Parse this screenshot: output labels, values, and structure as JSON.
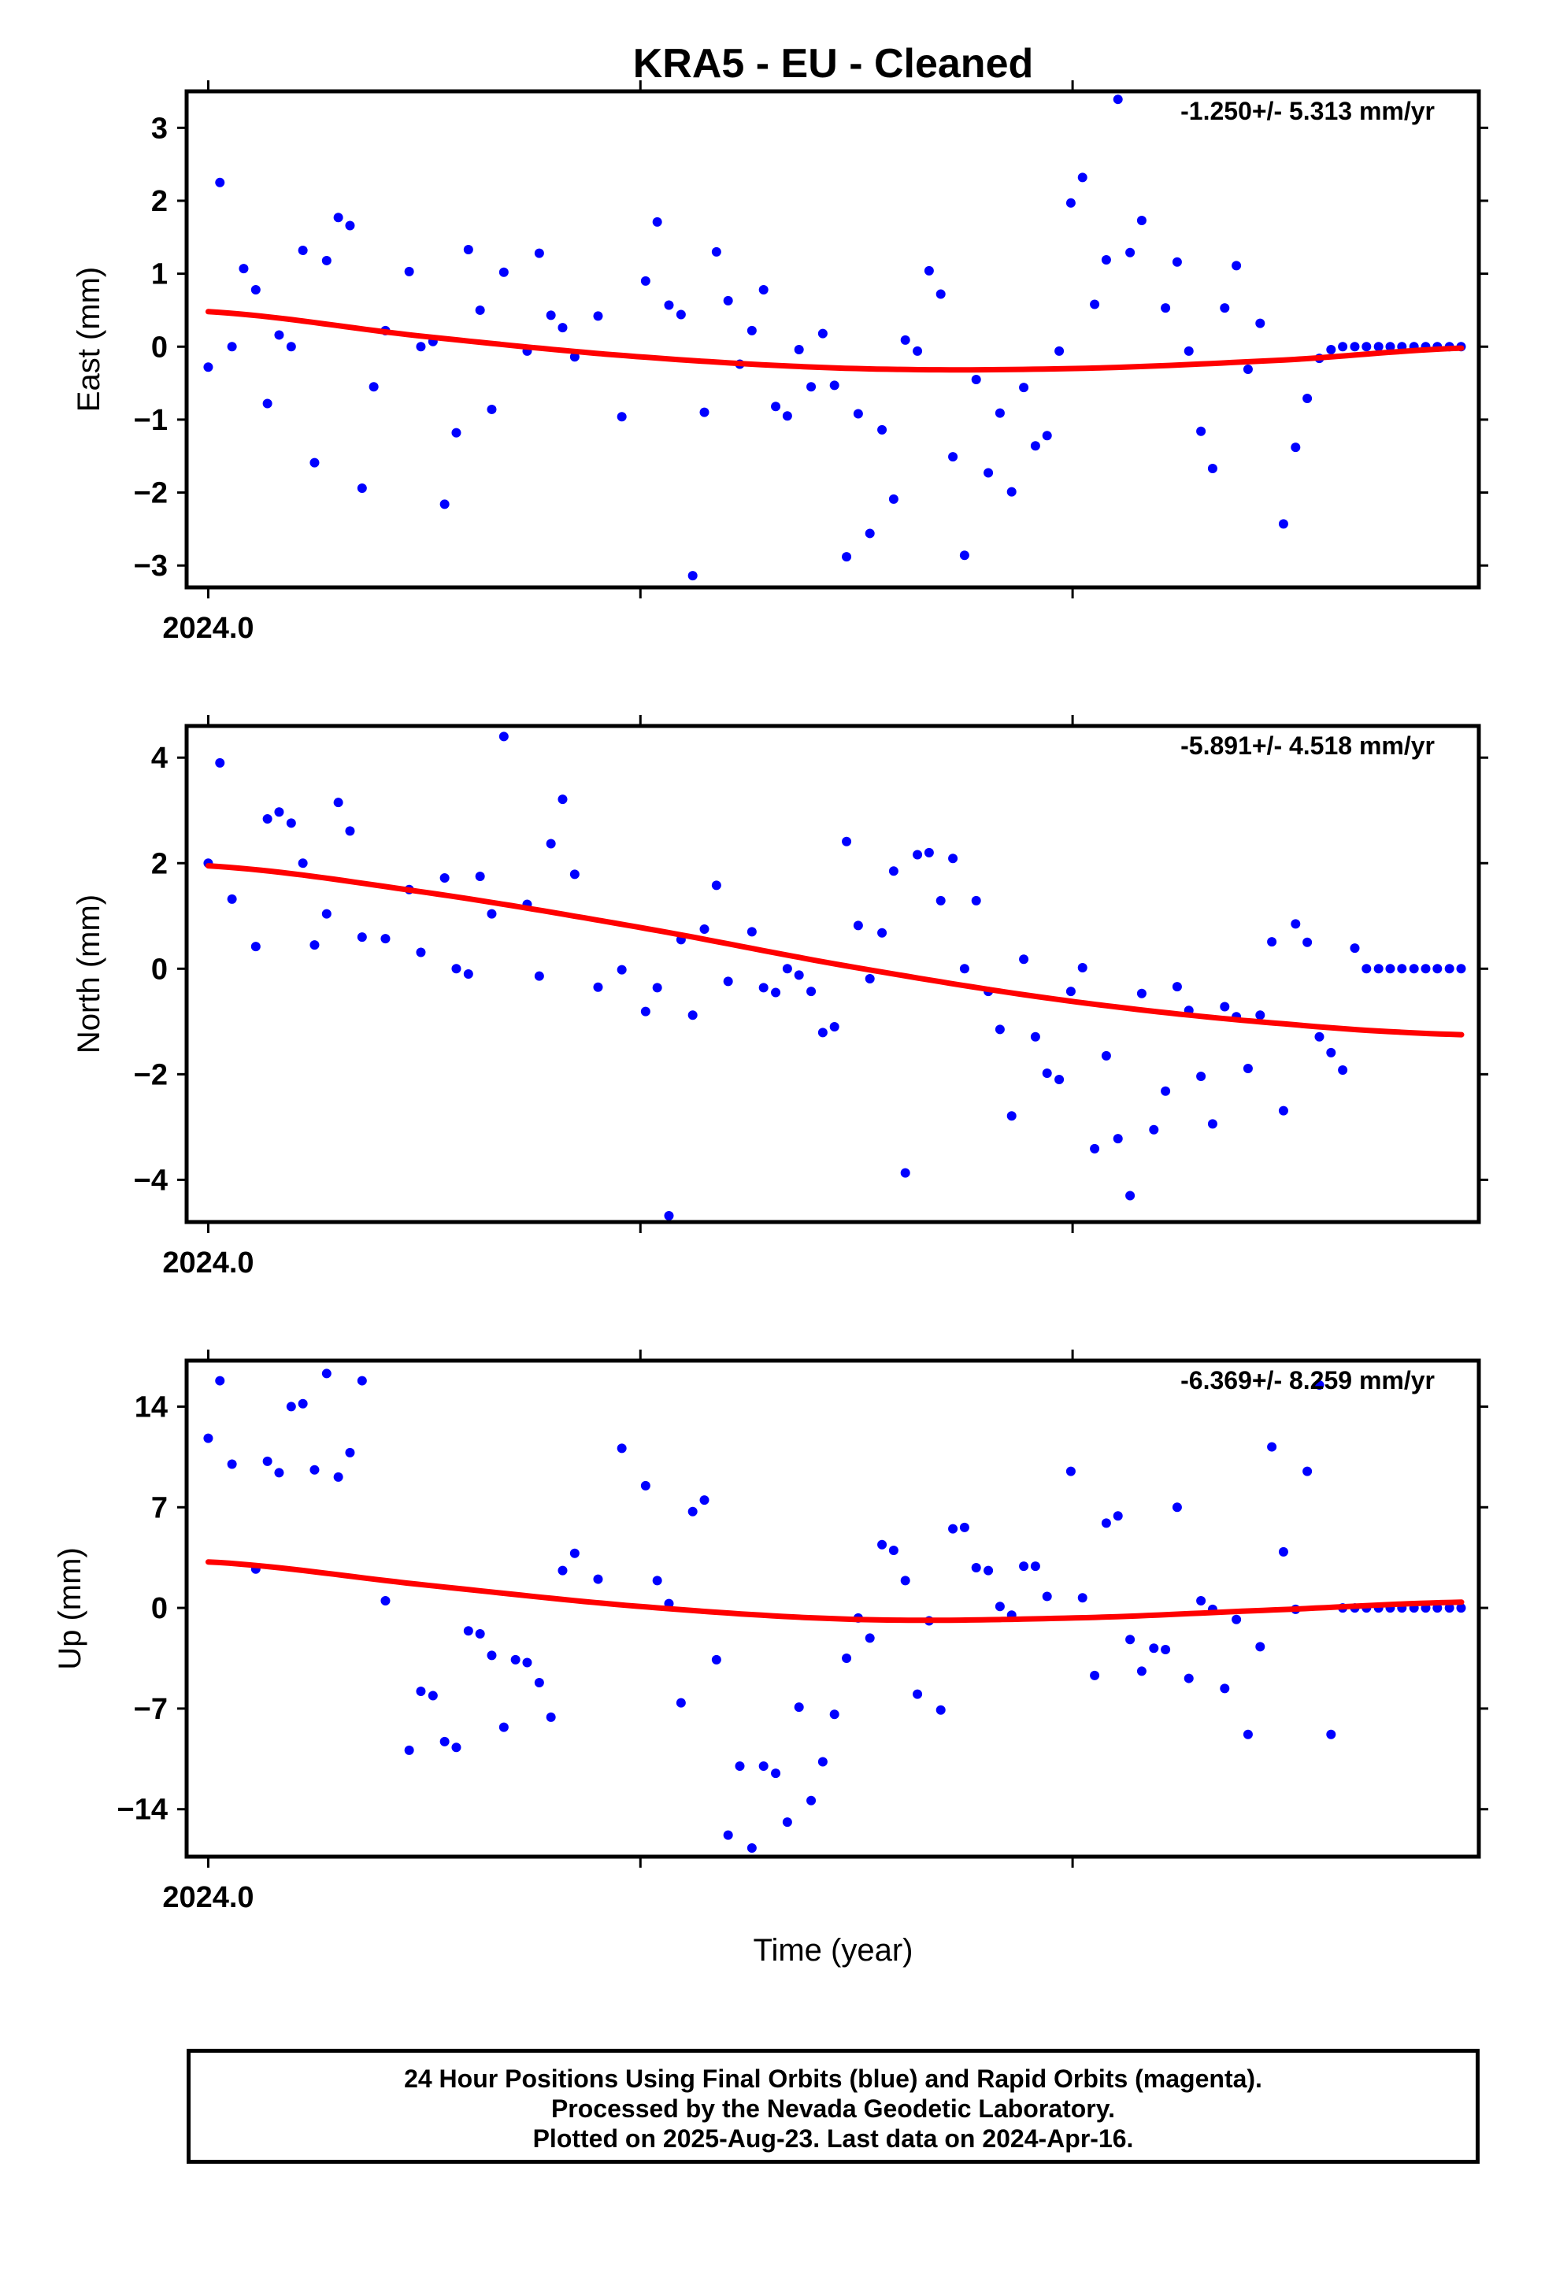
{
  "title": "KRA5  - EU - Cleaned",
  "xlabel": "Time (year)",
  "footer": {
    "line1": "24 Hour Positions Using Final Orbits (blue) and Rapid Orbits (magenta).",
    "line2": "Processed by the Nevada Geodetic Laboratory.",
    "line3": "Plotted on 2025-Aug-23. Last data on 2024-Apr-16."
  },
  "colors": {
    "points": "#0000ff",
    "fit": "#ff0000",
    "frame": "#000000"
  },
  "chart_data": [
    {
      "type": "scatter",
      "panel": "east",
      "ylabel": "East (mm)",
      "rate_text": "-1.250+/- 5.313 mm/yr",
      "xlim": [
        2023.995,
        2024.294
      ],
      "ylim": [
        -3.3,
        3.5
      ],
      "yticks": [
        -3,
        -2,
        -1,
        0,
        1,
        2,
        3
      ],
      "xtick_label": "2024.0",
      "x": [
        2024.0,
        2024.0027,
        2024.0055,
        2024.0082,
        2024.011,
        2024.0137,
        2024.0164,
        2024.0192,
        2024.0219,
        2024.0246,
        2024.0274,
        2024.0301,
        2024.0328,
        2024.0356,
        2024.0383,
        2024.041,
        2024.0465,
        2024.0492,
        2024.052,
        2024.0547,
        2024.0574,
        2024.0602,
        2024.0629,
        2024.0656,
        2024.0684,
        2024.0738,
        2024.0766,
        2024.0793,
        2024.082,
        2024.0848,
        2024.0902,
        2024.0957,
        2024.1012,
        2024.1039,
        2024.1066,
        2024.1094,
        2024.1121,
        2024.1148,
        2024.1176,
        2024.1203,
        2024.123,
        2024.1258,
        2024.1285,
        2024.1313,
        2024.134,
        2024.1367,
        2024.1395,
        2024.1422,
        2024.1449,
        2024.1477,
        2024.1504,
        2024.1531,
        2024.1559,
        2024.1586,
        2024.1613,
        2024.1641,
        2024.1668,
        2024.1695,
        2024.1723,
        2024.175,
        2024.1777,
        2024.1805,
        2024.1832,
        2024.1859,
        2024.1887,
        2024.1914,
        2024.1941,
        2024.1969,
        2024.1996,
        2024.2023,
        2024.2051,
        2024.2078,
        2024.2105,
        2024.2133,
        2024.216,
        2024.2215,
        2024.2242,
        2024.2269,
        2024.2297,
        2024.2324,
        2024.2352,
        2024.2379,
        2024.2406,
        2024.2434,
        2024.2488,
        2024.2516,
        2024.2543,
        2024.2571,
        2024.2598,
        2024.2625,
        2024.2653,
        2024.268,
        2024.2708,
        2024.2735,
        2024.2762,
        2024.279,
        2024.2817,
        2024.2844,
        2024.2872,
        2024.2899
      ],
      "y": [
        -0.28,
        2.25,
        0.0,
        1.07,
        0.78,
        -0.78,
        0.16,
        0.0,
        1.32,
        -1.59,
        1.18,
        1.77,
        1.66,
        -1.94,
        -0.55,
        0.22,
        1.03,
        0.0,
        0.07,
        -2.16,
        -1.18,
        1.33,
        0.5,
        -0.86,
        1.02,
        -0.06,
        1.28,
        0.43,
        0.26,
        -0.14,
        0.42,
        -0.96,
        0.9,
        1.71,
        0.57,
        0.44,
        -3.14,
        -0.9,
        1.3,
        0.63,
        -0.24,
        0.22,
        0.78,
        -0.82,
        -0.95,
        -0.04,
        -0.55,
        0.18,
        -0.53,
        -2.88,
        -0.92,
        -2.56,
        -1.14,
        -2.09,
        0.09,
        -0.06,
        1.04,
        0.72,
        -1.51,
        -2.86,
        -0.45,
        -1.73,
        -0.91,
        -1.99,
        -0.56,
        -1.36,
        -1.22,
        -0.06,
        1.97,
        2.32,
        0.58,
        1.19,
        3.39,
        1.29,
        1.73,
        0.53,
        1.16,
        -0.06,
        -1.16,
        -1.67,
        0.53,
        1.11,
        -0.31,
        0.32,
        -2.43,
        -1.38,
        -0.71,
        -0.16,
        -0.04,
        0.0,
        0.0,
        0.0,
        0.0,
        0.0,
        0.0,
        0.0,
        0.0,
        0.0,
        0.0,
        0.0
      ],
      "fit": {
        "x": [
          2024.0,
          2024.05,
          2024.1,
          2024.15,
          2024.2,
          2024.25,
          2024.29
        ],
        "y": [
          0.48,
          0.14,
          -0.14,
          -0.3,
          -0.3,
          -0.18,
          -0.02
        ]
      }
    },
    {
      "type": "scatter",
      "panel": "north",
      "ylabel": "North (mm)",
      "rate_text": "-5.891+/- 4.518 mm/yr",
      "xlim": [
        2023.995,
        2024.294
      ],
      "ylim": [
        -4.8,
        4.6
      ],
      "yticks": [
        -4,
        -2,
        0,
        2,
        4
      ],
      "xtick_label": "2024.0",
      "x": [
        2024.0,
        2024.0027,
        2024.0055,
        2024.011,
        2024.0137,
        2024.0164,
        2024.0192,
        2024.0219,
        2024.0246,
        2024.0274,
        2024.0301,
        2024.0328,
        2024.0356,
        2024.041,
        2024.0465,
        2024.0492,
        2024.0547,
        2024.0574,
        2024.0602,
        2024.0629,
        2024.0656,
        2024.0684,
        2024.0738,
        2024.0766,
        2024.0793,
        2024.082,
        2024.0848,
        2024.0902,
        2024.0957,
        2024.1012,
        2024.1039,
        2024.1066,
        2024.1094,
        2024.1121,
        2024.1148,
        2024.1176,
        2024.1203,
        2024.1258,
        2024.1285,
        2024.1313,
        2024.134,
        2024.1367,
        2024.1395,
        2024.1422,
        2024.1449,
        2024.1477,
        2024.1504,
        2024.1531,
        2024.1559,
        2024.1586,
        2024.1613,
        2024.1641,
        2024.1668,
        2024.1695,
        2024.1723,
        2024.175,
        2024.1777,
        2024.1805,
        2024.1832,
        2024.1859,
        2024.1887,
        2024.1914,
        2024.1941,
        2024.1969,
        2024.1996,
        2024.2023,
        2024.2051,
        2024.2078,
        2024.2105,
        2024.2133,
        2024.216,
        2024.2188,
        2024.2215,
        2024.2242,
        2024.2269,
        2024.2297,
        2024.2324,
        2024.2352,
        2024.2379,
        2024.2406,
        2024.2434,
        2024.2461,
        2024.2488,
        2024.2516,
        2024.2543,
        2024.2571,
        2024.2598,
        2024.2625,
        2024.2653,
        2024.268,
        2024.2708,
        2024.2735,
        2024.2762,
        2024.279,
        2024.2817,
        2024.2844,
        2024.2872,
        2024.2899
      ],
      "y": [
        2.0,
        3.9,
        1.32,
        0.42,
        2.84,
        2.97,
        2.76,
        2.0,
        0.45,
        1.04,
        3.15,
        2.61,
        0.6,
        0.57,
        1.5,
        0.31,
        1.72,
        0.0,
        -0.1,
        1.75,
        1.04,
        4.4,
        1.22,
        -0.14,
        2.37,
        3.21,
        1.79,
        -0.35,
        -0.02,
        -0.81,
        -0.36,
        -4.68,
        0.55,
        -0.88,
        0.75,
        1.58,
        -0.24,
        0.7,
        -0.36,
        -0.45,
        0.0,
        -0.12,
        -0.43,
        -1.21,
        -1.1,
        2.41,
        0.82,
        -0.19,
        0.68,
        1.85,
        -3.87,
        2.16,
        2.2,
        1.29,
        2.09,
        0.0,
        1.29,
        -0.43,
        -1.15,
        -2.79,
        0.18,
        -1.29,
        -1.98,
        -2.1,
        -0.43,
        0.02,
        -3.41,
        -1.65,
        -3.22,
        -4.3,
        -0.47,
        -3.05,
        -2.32,
        -0.34,
        -0.79,
        -2.04,
        -2.94,
        -0.72,
        -0.91,
        -1.89,
        -0.88,
        0.51,
        -2.69,
        0.85,
        0.5,
        -1.29,
        -1.59,
        -1.92,
        0.39,
        0.0,
        0.0,
        0.0,
        0.0,
        0.0,
        0.0,
        0.0,
        0.0,
        0.0
      ],
      "fit": {
        "x": [
          2024.0,
          2024.05,
          2024.1,
          2024.15,
          2024.2,
          2024.25,
          2024.29
        ],
        "y": [
          1.95,
          1.45,
          0.78,
          0.02,
          -0.62,
          -1.05,
          -1.25
        ]
      }
    },
    {
      "type": "scatter",
      "panel": "up",
      "ylabel": "Up (mm)",
      "rate_text": "-6.369+/- 8.259 mm/yr",
      "xlim": [
        2023.995,
        2024.294
      ],
      "ylim": [
        -17.3,
        17.2
      ],
      "yticks": [
        -14,
        -7,
        0,
        7,
        14
      ],
      "xtick_label": "2024.0",
      "x": [
        2024.0,
        2024.0027,
        2024.0055,
        2024.011,
        2024.0137,
        2024.0164,
        2024.0192,
        2024.0219,
        2024.0246,
        2024.0274,
        2024.0301,
        2024.0328,
        2024.0356,
        2024.041,
        2024.0465,
        2024.0492,
        2024.052,
        2024.0547,
        2024.0574,
        2024.0602,
        2024.0629,
        2024.0656,
        2024.0684,
        2024.0711,
        2024.0738,
        2024.0766,
        2024.0793,
        2024.082,
        2024.0848,
        2024.0902,
        2024.0957,
        2024.1012,
        2024.1039,
        2024.1066,
        2024.1094,
        2024.1121,
        2024.1148,
        2024.1176,
        2024.1203,
        2024.123,
        2024.1258,
        2024.1285,
        2024.1313,
        2024.134,
        2024.1367,
        2024.1395,
        2024.1422,
        2024.1449,
        2024.1477,
        2024.1504,
        2024.1531,
        2024.1559,
        2024.1586,
        2024.1613,
        2024.1641,
        2024.1668,
        2024.1695,
        2024.1723,
        2024.175,
        2024.1777,
        2024.1805,
        2024.1832,
        2024.1859,
        2024.1887,
        2024.1914,
        2024.1941,
        2024.1996,
        2024.2023,
        2024.2051,
        2024.2078,
        2024.2105,
        2024.2133,
        2024.216,
        2024.2188,
        2024.2215,
        2024.2242,
        2024.2269,
        2024.2297,
        2024.2324,
        2024.2352,
        2024.2379,
        2024.2406,
        2024.2434,
        2024.2461,
        2024.2488,
        2024.2516,
        2024.2543,
        2024.2571,
        2024.2598,
        2024.2625,
        2024.2653,
        2024.268,
        2024.2708,
        2024.2735,
        2024.2762,
        2024.279,
        2024.2817,
        2024.2844,
        2024.2872,
        2024.2899
      ],
      "y": [
        11.8,
        15.8,
        10.0,
        2.7,
        10.2,
        9.4,
        14.0,
        14.2,
        9.6,
        16.3,
        9.1,
        10.8,
        15.8,
        0.5,
        -9.9,
        -5.8,
        -6.1,
        -9.3,
        -9.7,
        -1.6,
        -1.8,
        -3.3,
        -8.3,
        -3.6,
        -3.8,
        -5.2,
        -7.6,
        2.6,
        3.8,
        2.0,
        11.1,
        8.5,
        1.9,
        0.3,
        -6.6,
        6.7,
        7.5,
        -3.6,
        -15.8,
        -11.0,
        -16.7,
        -11.0,
        -11.5,
        -14.9,
        -6.9,
        -13.4,
        -10.7,
        -7.4,
        -3.5,
        -0.7,
        -2.1,
        4.4,
        4.0,
        1.9,
        -6.0,
        -0.9,
        -7.1,
        5.5,
        5.6,
        2.8,
        2.6,
        0.1,
        -0.5,
        2.9,
        2.9,
        0.8,
        9.5,
        0.7,
        -4.7,
        5.9,
        6.4,
        -2.2,
        -4.4,
        -2.8,
        -2.9,
        7.0,
        -4.9,
        0.5,
        -0.1,
        -5.6,
        -0.8,
        -8.8,
        -2.7,
        11.2,
        3.9,
        -0.1,
        9.5,
        15.5,
        -8.8,
        0.0,
        0.0,
        0.0,
        0.0,
        0.0,
        0.0,
        0.0,
        0.0,
        0.0,
        0.0,
        0.0
      ],
      "fit": {
        "x": [
          2024.0,
          2024.05,
          2024.1,
          2024.15,
          2024.2,
          2024.25,
          2024.29
        ],
        "y": [
          3.2,
          1.6,
          0.1,
          -0.8,
          -0.7,
          -0.1,
          0.4
        ]
      }
    }
  ]
}
